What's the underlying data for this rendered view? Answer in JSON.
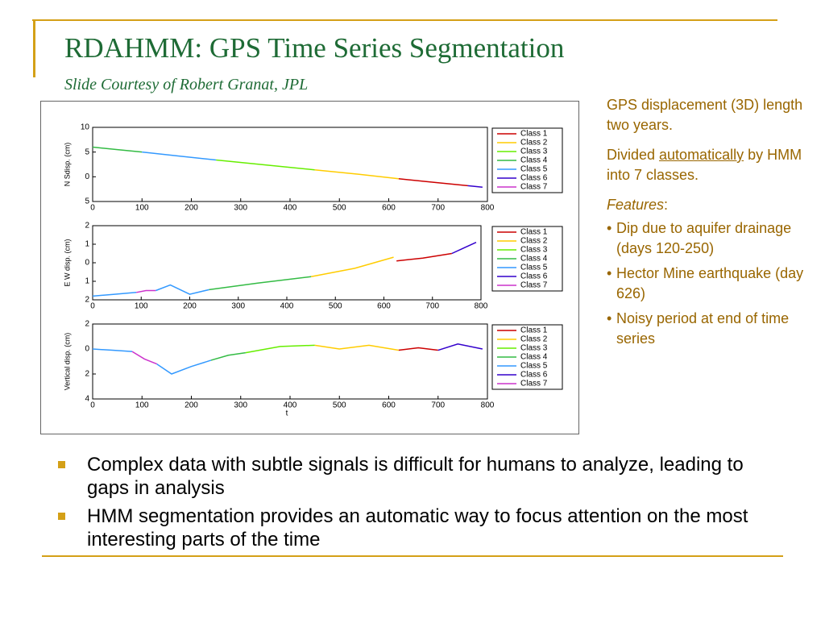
{
  "header": {
    "title": "RDAHMM: GPS Time Series Segmentation",
    "subtitle": "Slide Courtesy of Robert Granat, JPL"
  },
  "side": {
    "p1": "GPS displacement (3D) length two years.",
    "p2_pre": "Divided ",
    "p2_link": "automatically",
    "p2_post": " by HMM into 7 classes.",
    "features": "Features",
    "features_colon": ":",
    "items": [
      "Dip due to aquifer drainage (days 120-250)",
      "Hector Mine earthquake (day 626)",
      "Noisy period at end of time series"
    ]
  },
  "bullets": [
    "Complex data with subtle signals is difficult for humans to analyze, leading to gaps in analysis",
    "HMM segmentation provides an automatic way to focus attention on the most interesting parts of the time"
  ],
  "chart_data": [
    {
      "type": "line",
      "ylabel": "N  Sdisp. (cm)",
      "xlim": [
        0,
        800
      ],
      "xticks": [
        0,
        100,
        200,
        300,
        400,
        500,
        600,
        700,
        800
      ],
      "ylim": [
        -5,
        10
      ],
      "yticks": [
        10,
        5,
        0,
        {
          "value": -5,
          "label": "5"
        }
      ],
      "series": [
        {
          "name": "Class 1",
          "color": "#cc0000",
          "x": [
            620,
            690,
            760
          ],
          "values": [
            -0.4,
            -1.1,
            -1.8
          ]
        },
        {
          "name": "Class 2",
          "color": "#ffcc00",
          "x": [
            450,
            540,
            620
          ],
          "values": [
            1.4,
            0.5,
            -0.4
          ]
        },
        {
          "name": "Class 3",
          "color": "#66ee00",
          "x": [
            250,
            350,
            450
          ],
          "values": [
            3.4,
            2.4,
            1.4
          ]
        },
        {
          "name": "Class 4",
          "color": "#33bb44",
          "x": [
            0,
            50,
            100
          ],
          "values": [
            6.0,
            5.5,
            5.0
          ]
        },
        {
          "name": "Class 5",
          "color": "#3399ff",
          "x": [
            100,
            175,
            250
          ],
          "values": [
            5.0,
            4.2,
            3.4
          ]
        },
        {
          "name": "Class 6",
          "color": "#3300cc",
          "x": [
            760,
            790
          ],
          "values": [
            -1.8,
            -2.1
          ]
        },
        {
          "name": "Class 7",
          "color": "#cc33cc",
          "x": [],
          "values": []
        }
      ]
    },
    {
      "type": "line",
      "ylabel": "E  W disp. (cm)",
      "xlim": [
        0,
        800
      ],
      "xticks": [
        0,
        100,
        200,
        300,
        400,
        500,
        600,
        700,
        800
      ],
      "ylim": [
        -2,
        2
      ],
      "yticks": [
        2,
        1,
        0,
        {
          "value": -1,
          "label": "1"
        },
        {
          "value": -2,
          "label": "2"
        }
      ],
      "series": [
        {
          "name": "Class 1",
          "color": "#cc0000",
          "x": [
            626,
            680,
            740
          ],
          "values": [
            0.1,
            0.25,
            0.5
          ]
        },
        {
          "name": "Class 2",
          "color": "#ffcc00",
          "x": [
            450,
            540,
            620
          ],
          "values": [
            -0.75,
            -0.3,
            0.3
          ]
        },
        {
          "name": "Class 3",
          "color": "#66ee00",
          "x": [],
          "values": []
        },
        {
          "name": "Class 4",
          "color": "#33bb44",
          "x": [
            240,
            340,
            450
          ],
          "values": [
            -1.45,
            -1.1,
            -0.75
          ]
        },
        {
          "name": "Class 5",
          "color": "#3399ff",
          "x": [
            0,
            45,
            90,
            110,
            130,
            160,
            200,
            240
          ],
          "values": [
            -1.8,
            -1.7,
            -1.6,
            null,
            -1.5,
            -1.2,
            -1.7,
            -1.45
          ]
        },
        {
          "name": "Class 6",
          "color": "#3300cc",
          "x": [
            740,
            765,
            790
          ],
          "values": [
            0.5,
            0.8,
            1.1
          ]
        },
        {
          "name": "Class 7",
          "color": "#cc33cc",
          "x": [
            90,
            110,
            130
          ],
          "values": [
            -1.6,
            -1.5,
            -1.5
          ]
        }
      ]
    },
    {
      "type": "line",
      "ylabel": "Vertical disp. (cm)",
      "xlabel": "t",
      "xlim": [
        0,
        800
      ],
      "xticks": [
        0,
        100,
        200,
        300,
        400,
        500,
        600,
        700,
        800
      ],
      "ylim": [
        -4,
        2
      ],
      "yticks": [
        {
          "value": 2,
          "label": "2"
        },
        0,
        {
          "value": -2,
          "label": "2"
        },
        {
          "value": -4,
          "label": "4"
        }
      ],
      "series": [
        {
          "name": "Class 1",
          "color": "#cc0000",
          "x": [
            620,
            660,
            700
          ],
          "values": [
            -0.1,
            0.1,
            -0.1
          ]
        },
        {
          "name": "Class 2",
          "color": "#ffcc00",
          "x": [
            450,
            500,
            560,
            620
          ],
          "values": [
            0.3,
            0.0,
            0.3,
            -0.1
          ]
        },
        {
          "name": "Class 3",
          "color": "#66ee00",
          "x": [
            310,
            380,
            450
          ],
          "values": [
            -0.3,
            0.2,
            0.3
          ]
        },
        {
          "name": "Class 4",
          "color": "#33bb44",
          "x": [
            240,
            275,
            310
          ],
          "values": [
            -0.9,
            -0.5,
            -0.3
          ]
        },
        {
          "name": "Class 5",
          "color": "#3399ff",
          "x": [
            0,
            40,
            80,
            105,
            130,
            160,
            200,
            240
          ],
          "values": [
            0.0,
            -0.1,
            -0.2,
            null,
            -1.2,
            -2.0,
            -1.4,
            -0.9
          ]
        },
        {
          "name": "Class 6",
          "color": "#3300cc",
          "x": [
            700,
            740,
            790
          ],
          "values": [
            -0.1,
            0.4,
            0.0
          ]
        },
        {
          "name": "Class 7",
          "color": "#cc33cc",
          "x": [
            80,
            105,
            130
          ],
          "values": [
            -0.2,
            -0.8,
            -1.2
          ]
        }
      ]
    }
  ]
}
